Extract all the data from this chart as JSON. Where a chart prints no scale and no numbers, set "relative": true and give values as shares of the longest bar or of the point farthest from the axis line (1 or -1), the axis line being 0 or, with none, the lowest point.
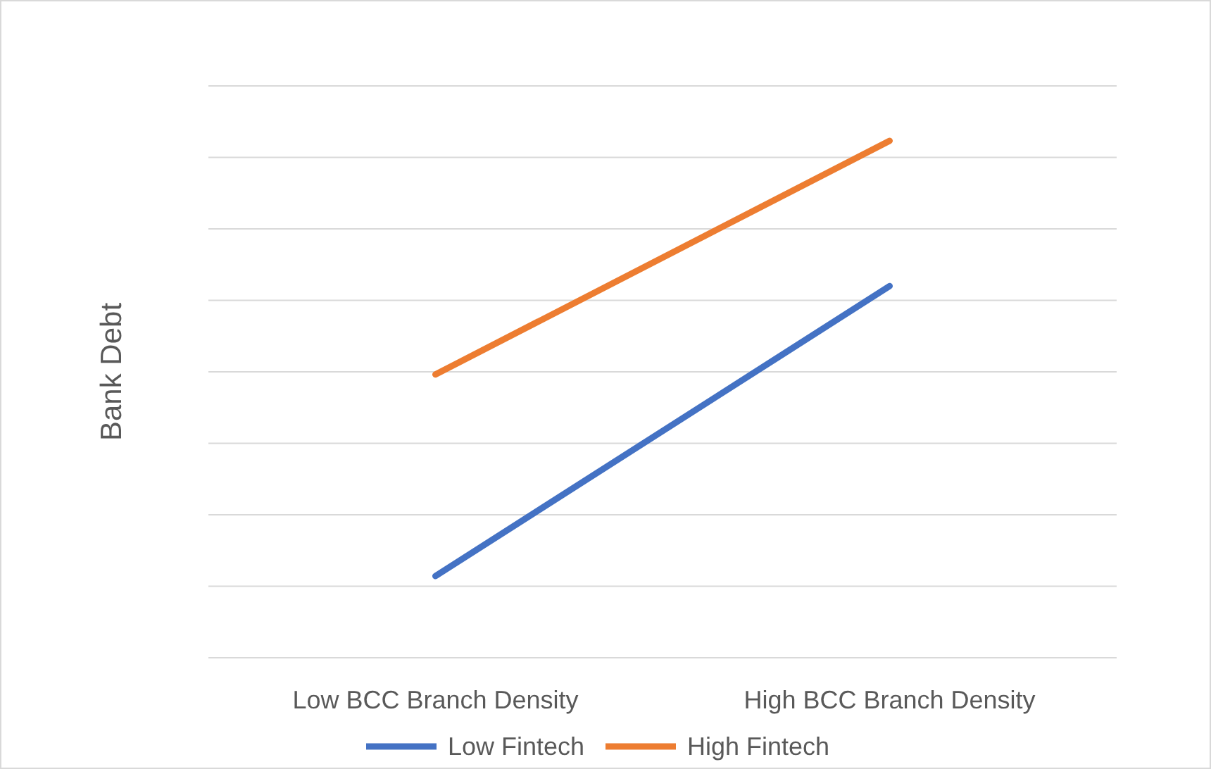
{
  "chart_data": {
    "type": "line",
    "ylabel": "Bank Debt",
    "categories": [
      "Low BCC Branch Density",
      "High BCC Branch Density"
    ],
    "relative": true,
    "grid": true,
    "legend": "bottom",
    "marker": "none",
    "line_style": "solid",
    "series": [
      {
        "name": "Low Fintech",
        "color": "#4472c4",
        "values": [
          0.158,
          0.719
        ]
      },
      {
        "name": "High Fintech",
        "color": "#ed7d31",
        "values": [
          0.548,
          1
        ]
      }
    ]
  }
}
